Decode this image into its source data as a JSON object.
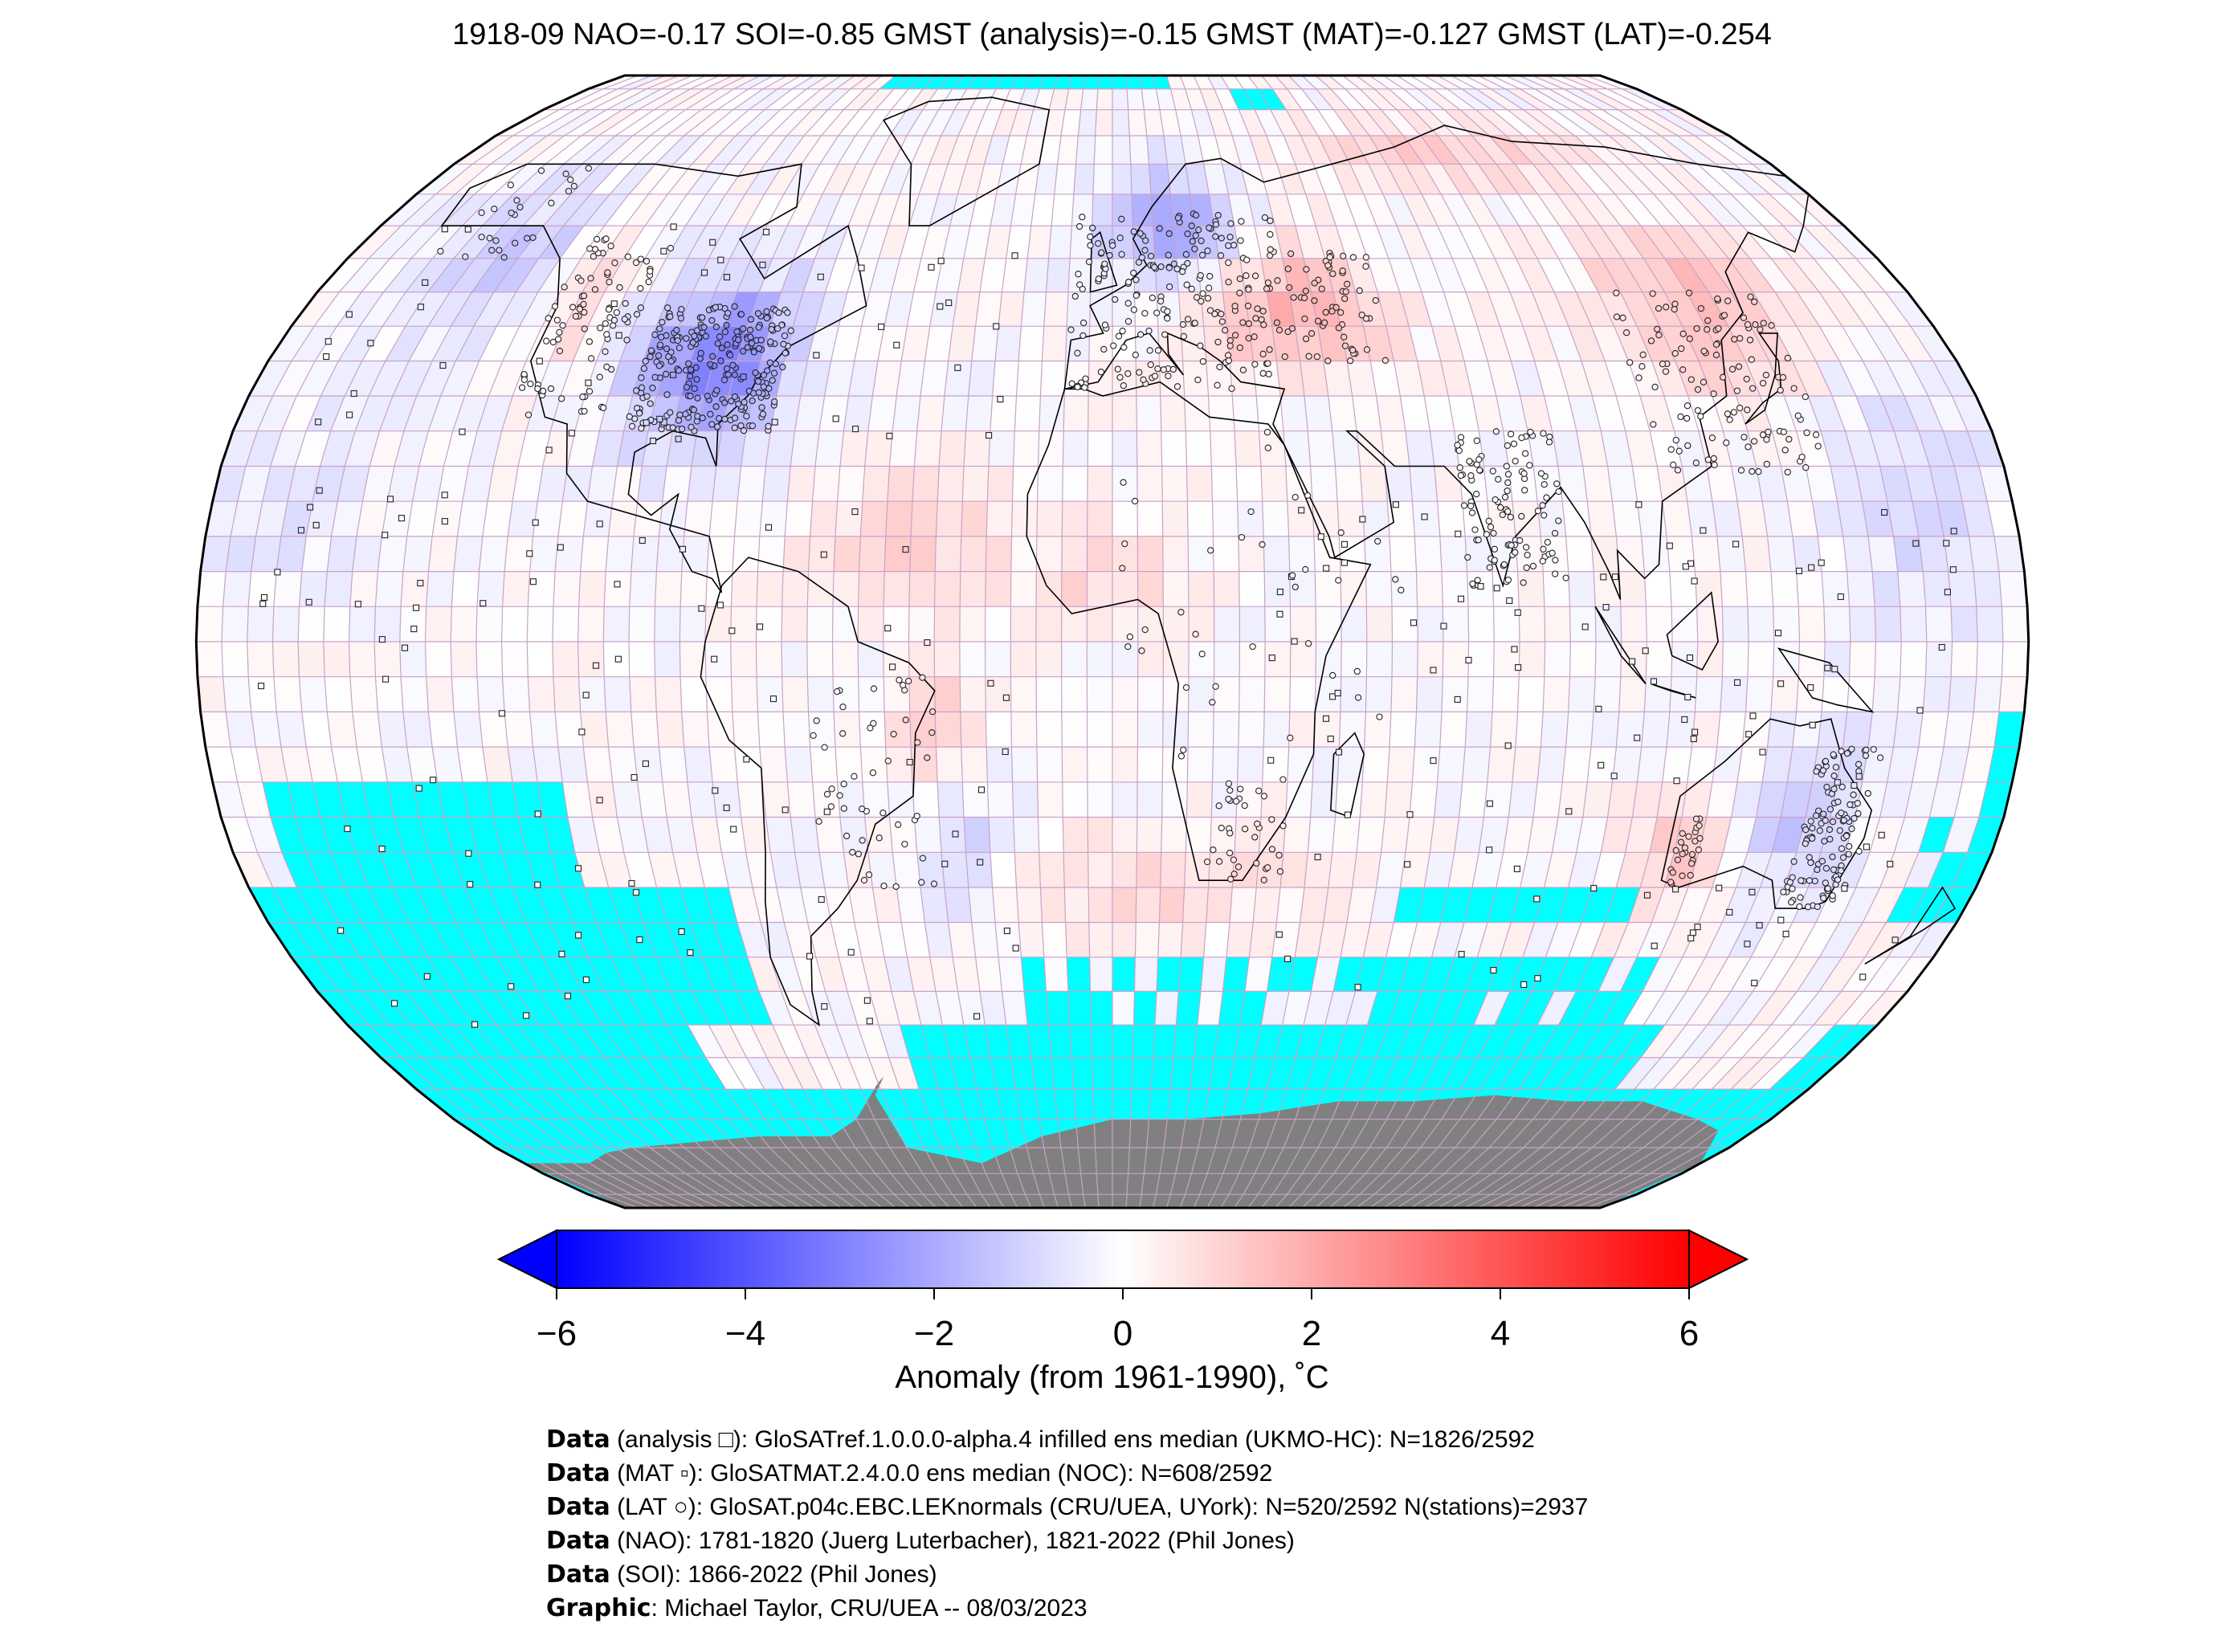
{
  "title": "1918-09 NAO=-0.17 SOI=-0.85 GMST (analysis)=-0.15 GMST (MAT)=-0.127 GMST (LAT)=-0.254",
  "colors": {
    "missing": "#00ffff",
    "land_ice": "#808080",
    "grid": "#c8a2c8",
    "cold": "#0000ff",
    "warm": "#ff0000",
    "neutral": "#ffffff"
  },
  "colorbar": {
    "min": -6,
    "max": 6,
    "ticks": [
      "−6",
      "−4",
      "−2",
      "0",
      "2",
      "4",
      "6"
    ],
    "tick_values": [
      -6,
      -4,
      -2,
      0,
      2,
      4,
      6
    ],
    "label": "Anomaly (from 1961-1990), ˚C"
  },
  "credits": [
    {
      "bold": "Data",
      "text": " (analysis □): GloSATref.1.0.0.0-alpha.4 infilled ens median (UKMO-HC): N=1826/2592"
    },
    {
      "bold": "Data",
      "text": " (MAT ▫): GloSATMAT.2.4.0.0 ens median (NOC): N=608/2592"
    },
    {
      "bold": "Data",
      "text": " (LAT ○): GloSAT.p04c.EBC.LEKnormals (CRU/UEA, UYork): N=520/2592 N(stations)=2937"
    },
    {
      "bold": "Data",
      "text": " (NAO): 1781-1820 (Juerg Luterbacher), 1821-2022 (Phil Jones)"
    },
    {
      "bold": "Data",
      "text": " (SOI): 1866-2022 (Phil Jones)"
    },
    {
      "bold": "Graphic",
      "text": ": Michael Taylor, CRU/UEA -- 08/03/2023"
    }
  ]
}
